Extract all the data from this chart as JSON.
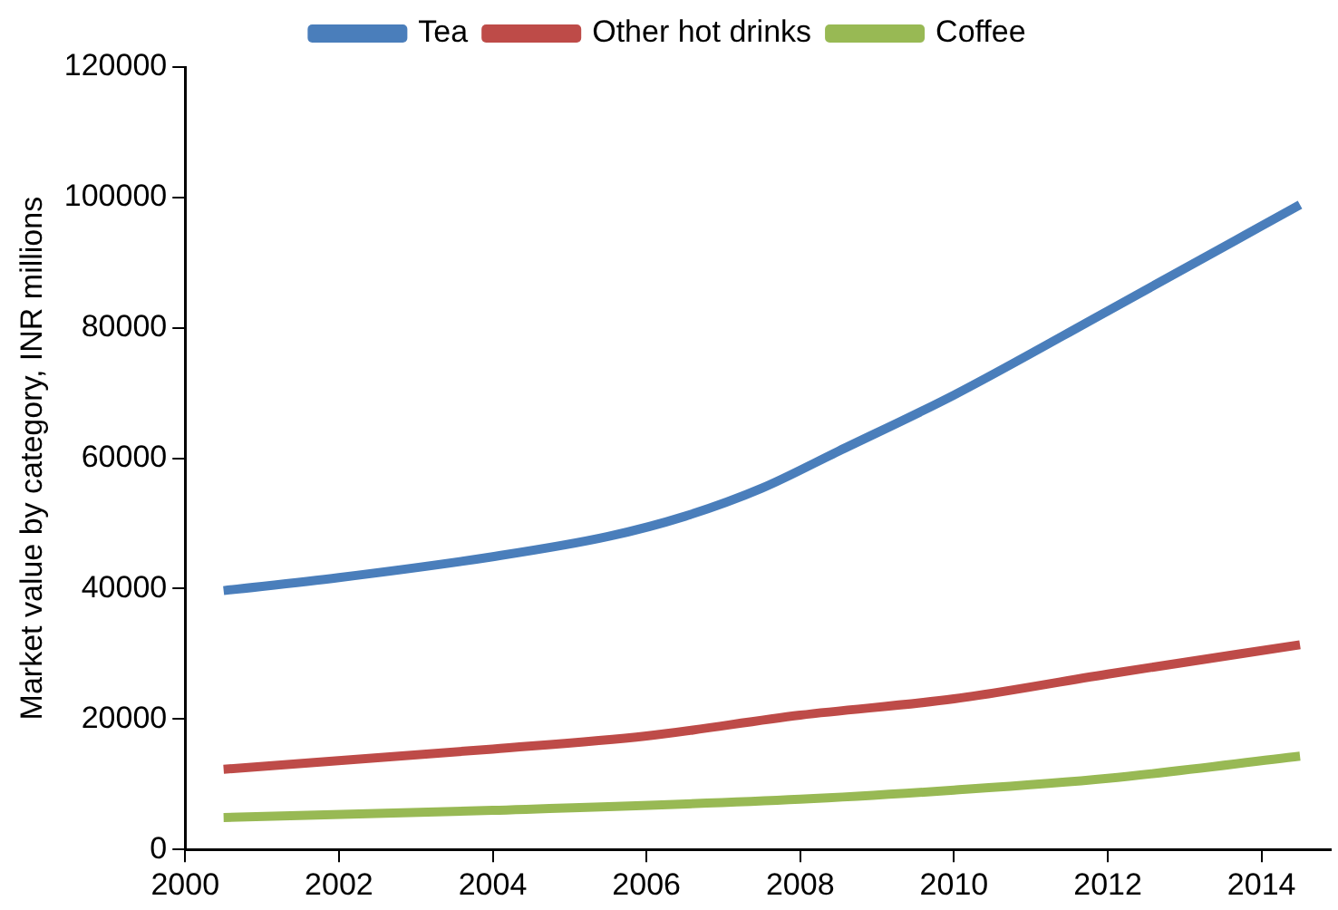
{
  "chart_data": {
    "type": "line",
    "ylabel": "Market value by category, INR millions",
    "xlim": [
      2000,
      2014.9
    ],
    "xticks": [
      2000,
      2002,
      2004,
      2006,
      2008,
      2010,
      2012,
      2014
    ],
    "ylim": [
      0,
      120000
    ],
    "yticks": [
      0,
      20000,
      40000,
      60000,
      80000,
      100000,
      120000
    ],
    "grid": false,
    "legend": "top",
    "marker": "none",
    "line_style": "solid",
    "series": [
      {
        "name": "Tea",
        "color": "#4a7ebb",
        "x": [
          2000.5,
          2002,
          2004,
          2005.5,
          2006.5,
          2007.5,
          2008.5,
          2010,
          2012,
          2014.5
        ],
        "values": [
          39700,
          41700,
          44900,
          48000,
          51100,
          55400,
          61100,
          69700,
          82600,
          98900
        ]
      },
      {
        "name": "Other hot drinks",
        "color": "#be4b48",
        "x": [
          2000.5,
          2004,
          2006,
          2008,
          2010,
          2012,
          2014.5
        ],
        "values": [
          12300,
          15400,
          17400,
          20600,
          23100,
          26900,
          31400
        ]
      },
      {
        "name": "Coffee",
        "color": "#98b954",
        "x": [
          2000.5,
          2004,
          2008,
          2010,
          2012,
          2014.5
        ],
        "values": [
          4900,
          6000,
          7700,
          9100,
          10900,
          14300
        ]
      }
    ]
  }
}
